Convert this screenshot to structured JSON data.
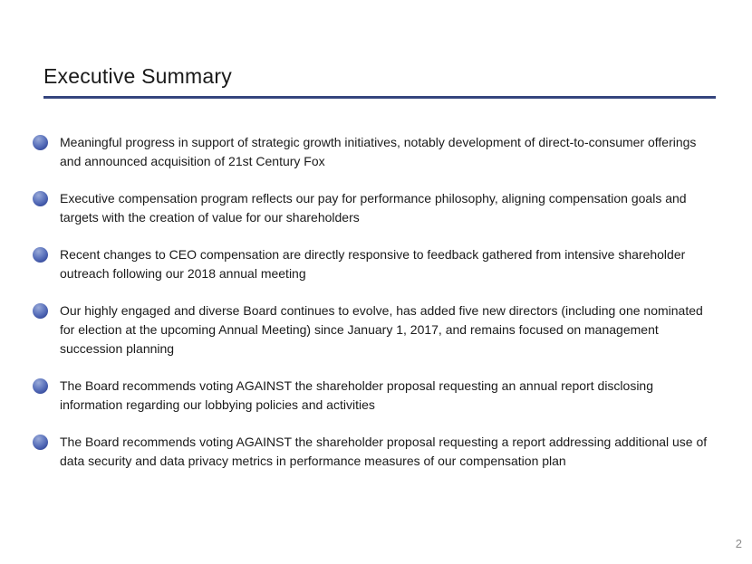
{
  "slide": {
    "title": "Executive Summary",
    "page_number": "2",
    "bullets": [
      {
        "text": "Meaningful progress in support of strategic growth initiatives, notably development of direct-to-consumer offerings and announced acquisition of 21st Century Fox"
      },
      {
        "text": "Executive compensation program reflects our pay for performance philosophy, aligning compensation goals and targets with the creation of value for our shareholders"
      },
      {
        "text": "Recent changes to CEO compensation are directly responsive to feedback gathered from intensive shareholder outreach following our 2018 annual meeting"
      },
      {
        "text": "Our highly engaged and diverse Board continues to evolve, has added five new directors (including one nominated for election at the upcoming Annual Meeting) since January 1, 2017, and remains focused on management succession planning"
      },
      {
        "text": "The Board recommends voting AGAINST the shareholder proposal requesting an annual report disclosing information regarding our lobbying policies and activities"
      },
      {
        "text": "The Board recommends voting AGAINST the shareholder proposal requesting a report addressing additional use of data security and data privacy metrics in performance measures of our compensation plan"
      }
    ],
    "colors": {
      "title_underline": "#35457e",
      "bullet_sphere_light": "#9aaad8",
      "bullet_sphere_mid": "#5269b6",
      "bullet_sphere_dark": "#2a3d82",
      "body_text": "#1a1a1a",
      "page_number_gray": "#8c8c8c",
      "background": "#ffffff"
    }
  }
}
